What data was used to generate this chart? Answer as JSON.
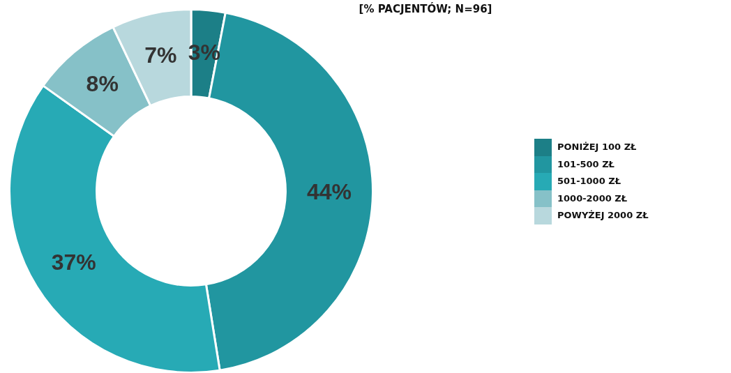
{
  "chart_data": {
    "type": "donut",
    "title": "[% PACJENTÓW; N=96]",
    "categories": [
      "PONIŻEJ 100 ZŁ",
      "101-500 ZŁ",
      "501-1000 ZŁ",
      "1000-2000 ZŁ",
      "POWYŻEJ 2000 ZŁ"
    ],
    "values": [
      3,
      44,
      37,
      8,
      7
    ],
    "colors": [
      "#1c7f87",
      "#2196a0",
      "#27aab5",
      "#86c1c8",
      "#b8d8dd"
    ],
    "value_labels": [
      "3%",
      "44%",
      "37%",
      "8%",
      "7%"
    ],
    "legend": "right"
  }
}
